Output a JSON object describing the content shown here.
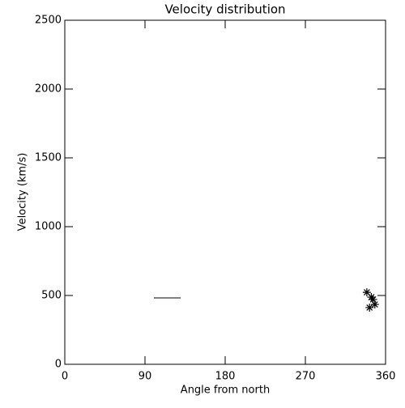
{
  "chart_data": {
    "type": "scatter",
    "title": "Velocity distribution",
    "x_label": "Angle from north",
    "y_label": "Velocity (km/s)",
    "xlim": [
      0,
      360
    ],
    "xticks": [
      0,
      90,
      180,
      270,
      360
    ],
    "ylim": [
      0,
      2500
    ],
    "yticks": [
      0,
      500,
      1000,
      1500,
      2000,
      2500
    ],
    "grid": false,
    "series": [
      {
        "marker": "asterisk",
        "color": "#000000",
        "x": [
          339,
          344,
          346,
          348,
          342
        ],
        "values": [
          523,
          488,
          471,
          435,
          412
        ]
      },
      {
        "marker": "none",
        "line": true,
        "color": "#000000",
        "x": [
          100,
          130
        ],
        "values": [
          482,
          482
        ]
      }
    ]
  }
}
